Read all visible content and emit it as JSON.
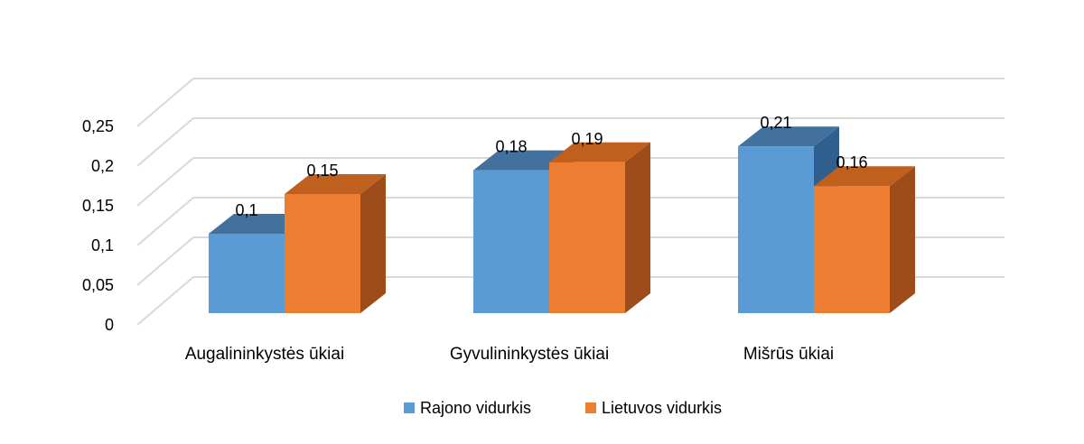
{
  "chart_data": {
    "type": "bar",
    "subtype": "3d-clustered-column",
    "categories": [
      "Augalininkystės ūkiai",
      "Gyvulininkystės ūkiai",
      "Mišrūs ūkiai"
    ],
    "series": [
      {
        "name": "Rajono vidurkis",
        "values": [
          0.1,
          0.18,
          0.21
        ],
        "labels": [
          "0,1",
          "0,18",
          "0,21"
        ]
      },
      {
        "name": "Lietuvos vidurkis",
        "values": [
          0.15,
          0.19,
          0.16
        ],
        "labels": [
          "0,15",
          "0,19",
          "0,16"
        ]
      }
    ],
    "y_ticks": [
      0,
      0.05,
      0.1,
      0.15,
      0.2,
      0.25
    ],
    "y_tick_labels": [
      "0",
      "0,05",
      "0,1",
      "0,15",
      "0,2",
      "0,25"
    ],
    "ylim": [
      0,
      0.25
    ],
    "grid": true,
    "legend_position": "bottom"
  },
  "colors": {
    "series": [
      {
        "front": "#5b9bd5",
        "side": "#2e5f8f",
        "top": "#41719c"
      },
      {
        "front": "#ed7d31",
        "side": "#9e4c1a",
        "top": "#c0601f"
      }
    ],
    "grid": "#d9d9d9"
  }
}
